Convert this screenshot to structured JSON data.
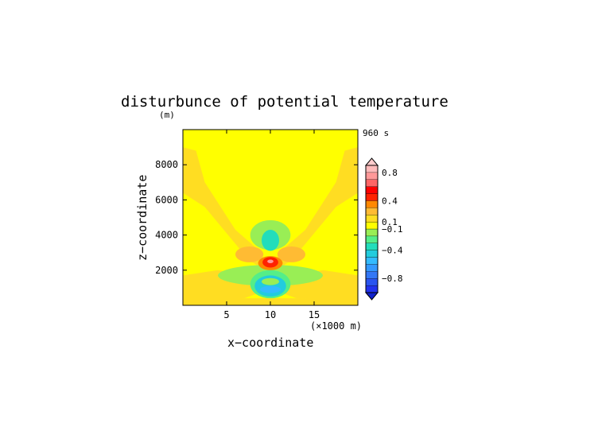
{
  "chart_data": {
    "type": "heatmap",
    "title": "disturbunce of potential temperature",
    "ylabel_unit": "(m)",
    "time_label": "960 s",
    "xlabel": "x−coordinate",
    "ylabel": "z−coordinate",
    "x_unit_label": "(×1000 m)",
    "xlim": [
      0,
      20
    ],
    "ylim": [
      0,
      10000
    ],
    "x_ticks": [
      5,
      10,
      15
    ],
    "x_tick_labels": [
      "5",
      "10",
      "15"
    ],
    "y_ticks": [
      2000,
      4000,
      6000,
      8000
    ],
    "y_tick_labels": [
      "2000",
      "4000",
      "6000",
      "8000"
    ],
    "colorbar": {
      "levels": [
        -1.0,
        -0.9,
        -0.8,
        -0.7,
        -0.6,
        -0.5,
        -0.4,
        -0.3,
        -0.2,
        -0.1,
        0.1,
        0.2,
        0.3,
        0.4,
        0.5,
        0.6,
        0.7,
        0.8,
        0.9,
        1.0
      ],
      "colors": [
        "#2233ee",
        "#2a55f0",
        "#3377f5",
        "#3399ff",
        "#33bbff",
        "#22ccdd",
        "#22ddbb",
        "#55ee88",
        "#99ee55",
        "#ffff00",
        "#ffdd22",
        "#ffbb33",
        "#ff8800",
        "#ff2200",
        "#ff0000",
        "#ff6666",
        "#ff9999",
        "#ffbbbb"
      ],
      "tick_labels": [
        {
          "value": 0.8,
          "label": "0.8"
        },
        {
          "value": 0.4,
          "label": "0.4"
        },
        {
          "value": 0.1,
          "label": "0.1"
        },
        {
          "value": -0.1,
          "label": "−0.1"
        },
        {
          "value": -0.4,
          "label": "−0.4"
        },
        {
          "value": -0.8,
          "label": "−0.8"
        }
      ]
    },
    "field_features": [
      {
        "kind": "warm_bubble",
        "x": 10,
        "z": 2400,
        "peak": 0.6
      },
      {
        "kind": "cold_anomaly",
        "x": 10,
        "z": 3700,
        "value": -0.4
      },
      {
        "kind": "cold_anomaly",
        "x": 10,
        "z": 1000,
        "value": -0.4
      },
      {
        "kind": "warm_band",
        "from_x": 10,
        "from_z": 2000,
        "to_x": 1,
        "to_z": 9000,
        "value": 0.15
      },
      {
        "kind": "warm_band",
        "from_x": 10,
        "from_z": 2000,
        "to_x": 19,
        "to_z": 9000,
        "value": 0.15
      }
    ],
    "grid": false,
    "legend": "right"
  }
}
